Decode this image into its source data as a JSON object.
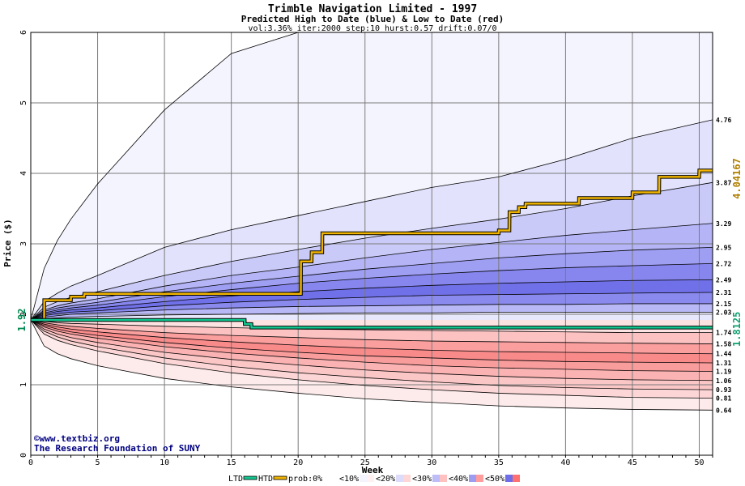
{
  "chart_data": {
    "type": "area",
    "title": "Trimble Navigation Limited - 1997",
    "subtitle": "Predicted High to Date (blue) &  Low to Date (red)",
    "params": "vol:3.36% iter:2000 step:10 hurst:0.57 drift:0.07/0",
    "xlabel": "Week",
    "ylabel": "Price ($)",
    "xlim": [
      0,
      51
    ],
    "ylim": [
      0,
      6
    ],
    "x_ticks": [
      0,
      5,
      10,
      15,
      20,
      25,
      30,
      35,
      40,
      45,
      50
    ],
    "y_ticks": [
      0,
      1,
      2,
      3,
      4,
      5,
      6
    ],
    "grid": true,
    "start_price": 1.92,
    "start_label": "1.92",
    "band_x": [
      0,
      1,
      2,
      3,
      5,
      10,
      15,
      20,
      25,
      30,
      35,
      40,
      45,
      51
    ],
    "bands": [
      {
        "name": "outer-high",
        "end": 6.0,
        "values": [
          1.92,
          2.65,
          3.05,
          3.35,
          3.85,
          4.9,
          5.7,
          6.0,
          6.0,
          6.0,
          6.0,
          6.0,
          6.0,
          6.0
        ]
      },
      {
        "name": "high-4.76",
        "end": 4.76,
        "values": [
          1.92,
          2.18,
          2.3,
          2.4,
          2.55,
          2.95,
          3.2,
          3.4,
          3.6,
          3.8,
          3.95,
          4.2,
          4.5,
          4.76
        ]
      },
      {
        "name": "high-3.87",
        "end": 3.87,
        "values": [
          1.92,
          2.1,
          2.18,
          2.24,
          2.32,
          2.55,
          2.75,
          2.92,
          3.08,
          3.22,
          3.35,
          3.5,
          3.68,
          3.87
        ]
      },
      {
        "name": "high-3.29",
        "end": 3.29,
        "values": [
          1.92,
          2.06,
          2.12,
          2.16,
          2.22,
          2.4,
          2.55,
          2.67,
          2.8,
          2.92,
          3.02,
          3.12,
          3.2,
          3.29
        ]
      },
      {
        "name": "high-2.95",
        "end": 2.95,
        "values": [
          1.92,
          2.04,
          2.09,
          2.12,
          2.17,
          2.32,
          2.44,
          2.54,
          2.64,
          2.72,
          2.8,
          2.86,
          2.91,
          2.95
        ]
      },
      {
        "name": "high-2.72",
        "end": 2.72,
        "values": [
          1.92,
          2.02,
          2.06,
          2.09,
          2.13,
          2.25,
          2.35,
          2.44,
          2.51,
          2.57,
          2.62,
          2.66,
          2.69,
          2.72
        ]
      },
      {
        "name": "high-2.49",
        "end": 2.49,
        "values": [
          1.92,
          2.0,
          2.04,
          2.06,
          2.09,
          2.18,
          2.26,
          2.32,
          2.37,
          2.41,
          2.44,
          2.46,
          2.48,
          2.49
        ]
      },
      {
        "name": "high-2.31",
        "end": 2.31,
        "values": [
          1.92,
          1.98,
          2.01,
          2.03,
          2.05,
          2.12,
          2.17,
          2.21,
          2.24,
          2.27,
          2.28,
          2.29,
          2.3,
          2.31
        ]
      },
      {
        "name": "high-2.15",
        "end": 2.15,
        "values": [
          1.92,
          1.96,
          1.98,
          2.0,
          2.02,
          2.06,
          2.09,
          2.11,
          2.12,
          2.13,
          2.14,
          2.14,
          2.15,
          2.15
        ]
      },
      {
        "name": "high-2.03",
        "end": 2.03,
        "values": [
          1.92,
          1.94,
          1.95,
          1.96,
          1.97,
          1.99,
          2.0,
          2.01,
          2.02,
          2.02,
          2.03,
          2.03,
          2.03,
          2.03
        ]
      },
      {
        "name": "low-1.74",
        "end": 1.74,
        "values": [
          1.92,
          1.9,
          1.88,
          1.87,
          1.86,
          1.83,
          1.81,
          1.79,
          1.78,
          1.77,
          1.76,
          1.75,
          1.74,
          1.74
        ]
      },
      {
        "name": "low-1.58",
        "end": 1.58,
        "values": [
          1.92,
          1.88,
          1.85,
          1.83,
          1.8,
          1.74,
          1.7,
          1.67,
          1.64,
          1.62,
          1.61,
          1.6,
          1.59,
          1.58
        ]
      },
      {
        "name": "low-1.44",
        "end": 1.44,
        "values": [
          1.92,
          1.86,
          1.82,
          1.79,
          1.75,
          1.67,
          1.61,
          1.56,
          1.52,
          1.49,
          1.47,
          1.46,
          1.45,
          1.44
        ]
      },
      {
        "name": "low-1.31",
        "end": 1.31,
        "values": [
          1.92,
          1.84,
          1.79,
          1.75,
          1.7,
          1.6,
          1.52,
          1.46,
          1.41,
          1.38,
          1.35,
          1.33,
          1.32,
          1.31
        ]
      },
      {
        "name": "low-1.19",
        "end": 1.19,
        "values": [
          1.92,
          1.82,
          1.76,
          1.72,
          1.66,
          1.54,
          1.45,
          1.38,
          1.32,
          1.27,
          1.24,
          1.22,
          1.2,
          1.19
        ]
      },
      {
        "name": "low-1.06",
        "end": 1.06,
        "values": [
          1.92,
          1.79,
          1.72,
          1.67,
          1.6,
          1.46,
          1.36,
          1.28,
          1.21,
          1.16,
          1.12,
          1.09,
          1.07,
          1.06
        ]
      },
      {
        "name": "low-0.93",
        "end": 0.93,
        "values": [
          1.92,
          1.76,
          1.68,
          1.62,
          1.54,
          1.38,
          1.26,
          1.17,
          1.1,
          1.04,
          0.99,
          0.96,
          0.94,
          0.93
        ]
      },
      {
        "name": "low-0.81",
        "end": 0.81,
        "values": [
          1.92,
          1.72,
          1.63,
          1.57,
          1.48,
          1.3,
          1.17,
          1.07,
          0.99,
          0.93,
          0.88,
          0.85,
          0.82,
          0.81
        ]
      },
      {
        "name": "low-0.64",
        "end": 0.64,
        "values": [
          1.92,
          1.55,
          1.44,
          1.37,
          1.27,
          1.09,
          0.97,
          0.88,
          0.8,
          0.75,
          0.7,
          0.67,
          0.65,
          0.64
        ]
      }
    ],
    "right_labels": [
      "4.76",
      "3.87",
      "3.29",
      "2.95",
      "2.72",
      "2.49",
      "2.31",
      "2.15",
      "2.03",
      "1.74",
      "1.58",
      "1.44",
      "1.31",
      "1.19",
      "1.06",
      "0.93",
      "0.81",
      "0.64"
    ],
    "htd_series": {
      "name": "HTD",
      "color": "#f0b400",
      "end_label": "4.04167",
      "x": [
        0,
        1,
        1.01,
        3,
        3.01,
        4,
        4.01,
        20.2,
        20.21,
        21,
        21.01,
        21.8,
        21.81,
        35,
        35.01,
        35.8,
        35.81,
        36.5,
        36.51,
        37,
        37.01,
        41,
        41.01,
        45,
        45.01,
        47,
        47.01,
        50,
        50.01,
        51
      ],
      "y": [
        1.92,
        1.92,
        2.2,
        2.2,
        2.25,
        2.25,
        2.29,
        2.29,
        2.75,
        2.75,
        2.88,
        2.88,
        3.15,
        3.15,
        3.19,
        3.19,
        3.45,
        3.45,
        3.52,
        3.52,
        3.57,
        3.57,
        3.65,
        3.65,
        3.73,
        3.73,
        3.95,
        3.95,
        4.04,
        4.04
      ]
    },
    "ltd_series": {
      "name": "LTD",
      "color": "#10c890",
      "end_label": "1.8125",
      "x": [
        0,
        16,
        16.01,
        16.5,
        16.51,
        51
      ],
      "y": [
        1.92,
        1.92,
        1.86,
        1.86,
        1.8125,
        1.8125
      ]
    }
  },
  "credit": {
    "copyright_symbol": "©",
    "site": "www.textbiz.org",
    "org": "The Research Foundation of SUNY"
  },
  "legend": {
    "items": [
      {
        "label": "LTD",
        "color": "#10c890",
        "kind": "line"
      },
      {
        "label": "HTD",
        "color": "#f0b400",
        "kind": "line"
      },
      {
        "label": "prob:0%",
        "color": "#ffffff",
        "kind": "swatch"
      },
      {
        "label": "<10%",
        "color": "#f4f4ff",
        "color2": "#fff1f1",
        "kind": "swatch"
      },
      {
        "label": "<20%",
        "color": "#dcdcfa",
        "color2": "#ffd6d6",
        "kind": "swatch"
      },
      {
        "label": "<30%",
        "color": "#bcbcf6",
        "color2": "#ffc0c0",
        "kind": "swatch"
      },
      {
        "label": "<40%",
        "color": "#9c9cf0",
        "color2": "#ff9c9c",
        "kind": "swatch"
      },
      {
        "label": "<50%",
        "color": "#6e6ee8",
        "color2": "#ff7070",
        "kind": "swatch"
      }
    ]
  },
  "colors": {
    "plot_bg": "#ffffff",
    "grid": "#7a7a7a",
    "blue_bands": [
      "#f4f4ff",
      "#e2e2fc",
      "#cacaf8",
      "#b4b4f6",
      "#9e9ef2",
      "#8686ee",
      "#7070e8",
      "#8a8aee",
      "#b8b8f6",
      "#e8e8fc"
    ],
    "red_bands": [
      "#fdeaea",
      "#fcd6d6",
      "#fbc6c6",
      "#fab2b2",
      "#f99c9c",
      "#f88a8a",
      "#fa9e9e",
      "#fcc2c2",
      "#fde2e2"
    ]
  }
}
